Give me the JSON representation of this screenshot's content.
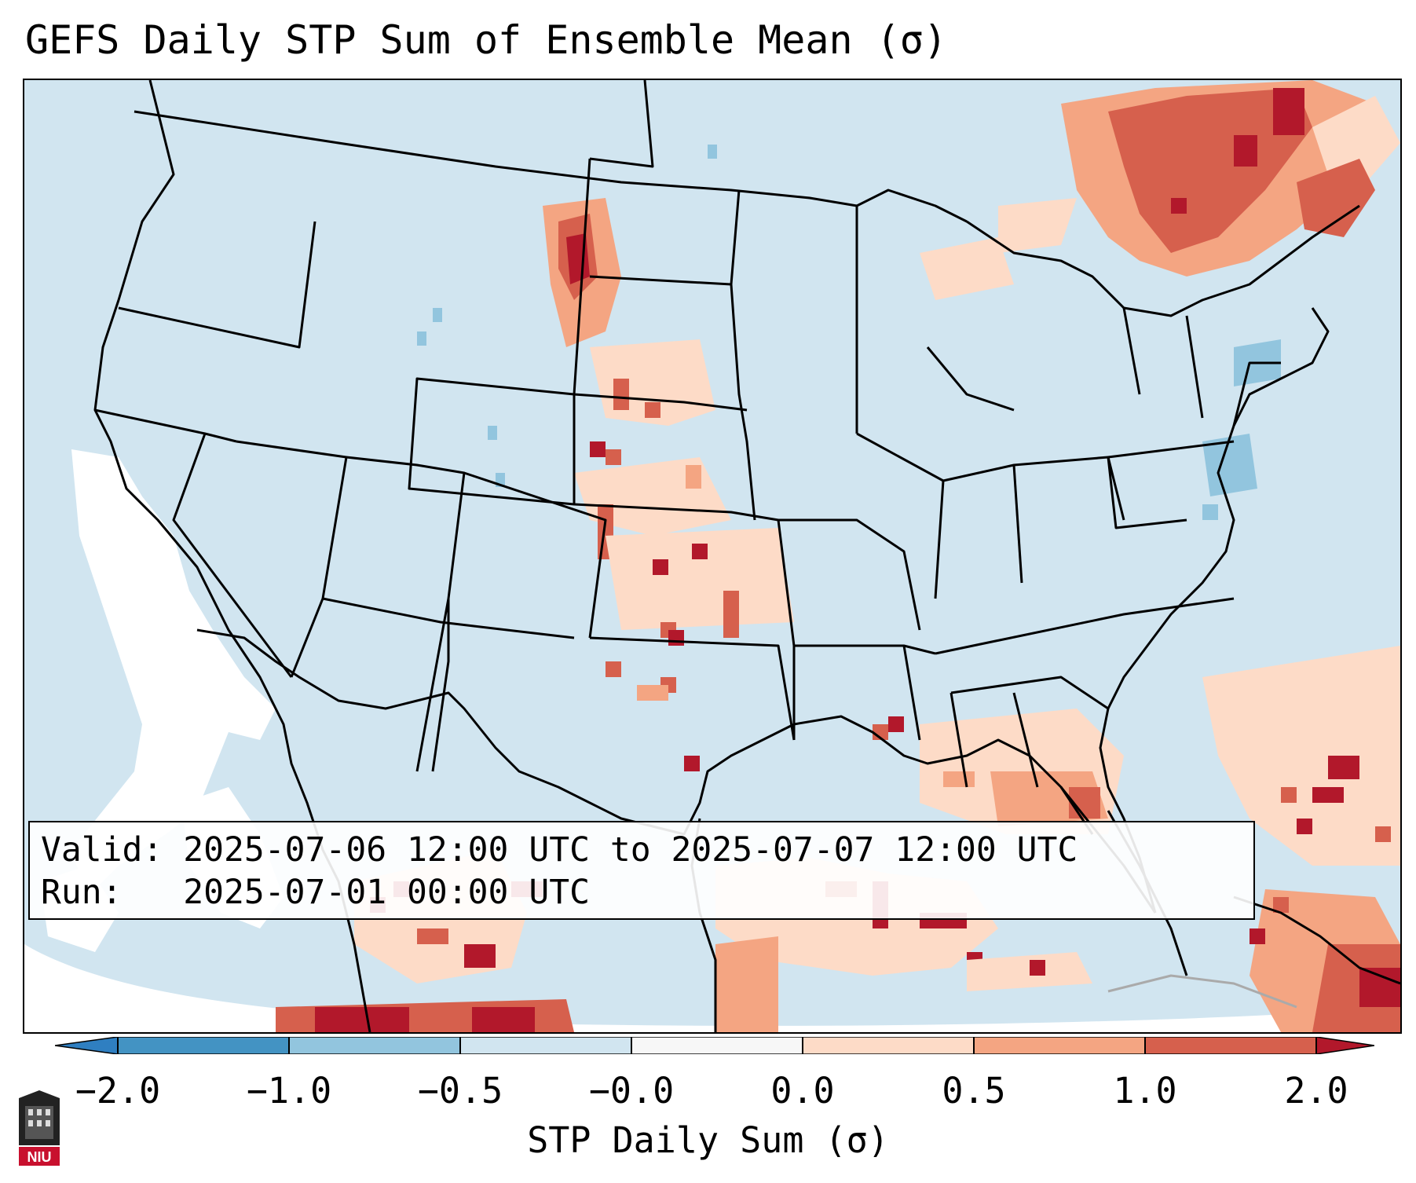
{
  "title": "GEFS Daily STP Sum of Ensemble Mean (σ)",
  "info": {
    "valid_line": "Valid: 2025-07-06 12:00 UTC to 2025-07-07 12:00 UTC",
    "run_line": "Run:   2025-07-01 00:00 UTC"
  },
  "colorbar": {
    "label": "STP Daily Sum (σ)",
    "ticks": [
      "−2.0",
      "−1.0",
      "−0.5",
      "−0.0",
      "0.0",
      "0.5",
      "1.0",
      "2.0"
    ],
    "colors": {
      "extend_low": "#2f7fc1",
      "b1": "#4393c3",
      "b2": "#92c5de",
      "b3": "#d1e5f0",
      "b4": "#f7f7f7",
      "b5": "#fddbc7",
      "b6": "#f4a582",
      "b7": "#d6604d",
      "extend_high": "#b2182b"
    }
  },
  "map": {
    "background_color": "#d1e5f0",
    "state_line_color": "#000000"
  },
  "logo": {
    "text": "NIU",
    "color": "#c8102e"
  }
}
